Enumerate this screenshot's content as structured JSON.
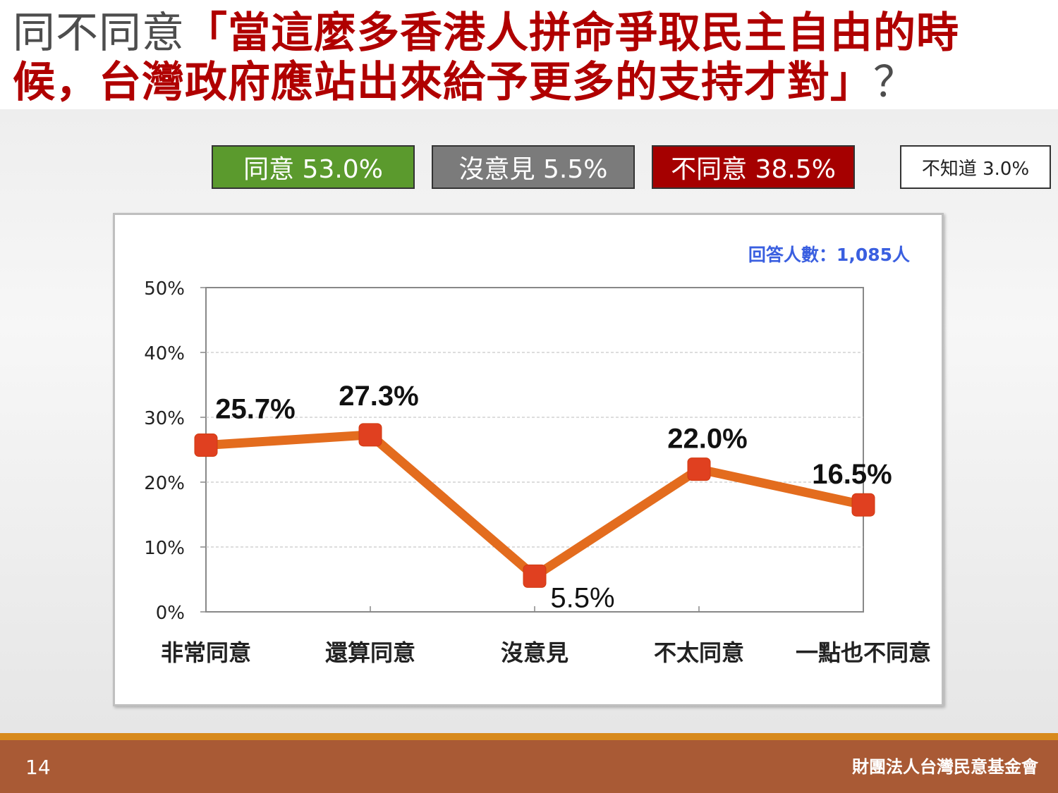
{
  "title": {
    "prefix": "同不同意",
    "line1_highlight": "「當這麼多香港人拼命爭取民主自由的時",
    "line2_highlight": "候，台灣政府應站出來給予更多的支持才對」",
    "suffix": "？"
  },
  "summary": {
    "agree": "同意 53.0%",
    "no_opinion": "沒意見 5.5%",
    "disagree": "不同意 38.5%",
    "dont_know": "不知道 3.0%"
  },
  "respondents": "回答人數：1,085人",
  "chart_data": {
    "type": "line",
    "categories": [
      "非常同意",
      "還算同意",
      "沒意見",
      "不太同意",
      "一點也不同意"
    ],
    "values": [
      25.7,
      27.3,
      5.5,
      22.0,
      16.5
    ],
    "data_labels": [
      "25.7%",
      "27.3%",
      "5.5%",
      "22.0%",
      "16.5%"
    ],
    "yticks": [
      "0%",
      "10%",
      "20%",
      "30%",
      "40%",
      "50%"
    ],
    "ylim": [
      0,
      50
    ],
    "grid": true,
    "line_color": "#e36c1e",
    "marker_color": "#e04020"
  },
  "footer": {
    "page_number": "14",
    "organization": "財團法人台灣民意基金會"
  },
  "colors": {
    "title_red": "#b00000",
    "agree_green": "#5b9a2d",
    "neutral_gray": "#7b7b7b",
    "disagree_red": "#a50000",
    "footer_brown": "#a95a35",
    "respondents_blue": "#3a5fe0"
  }
}
